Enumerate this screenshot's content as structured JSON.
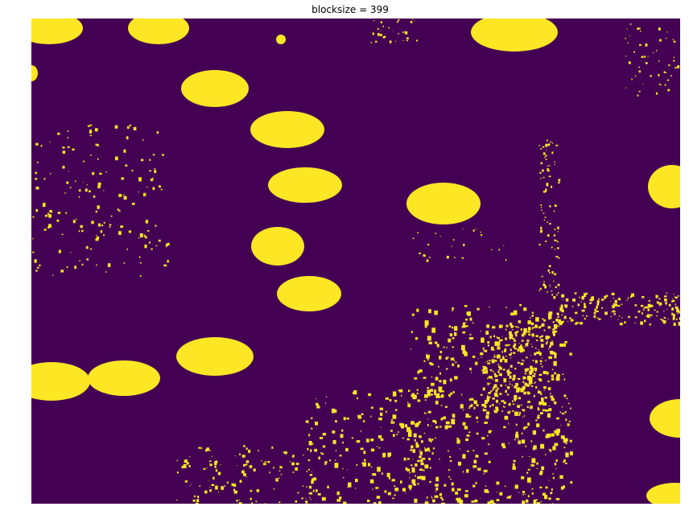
{
  "title": "blocksize = 399",
  "colors": {
    "background": "#440154",
    "foreground": "#fde725"
  }
}
